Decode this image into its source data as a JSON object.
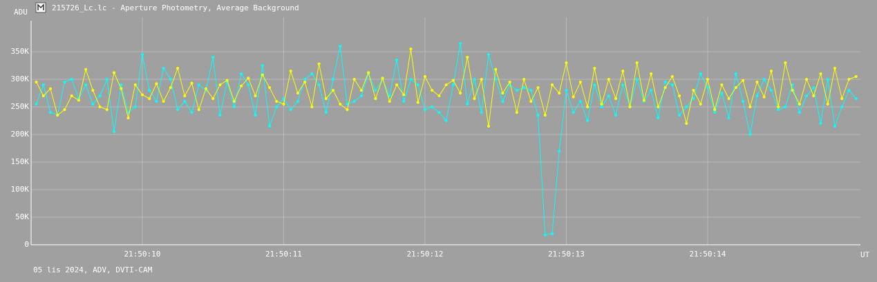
{
  "chart_data": {
    "type": "line",
    "title": "215726_Lc.lc - Aperture Photometry, Average Background",
    "ylabel": "ADU",
    "xlabel": "UT",
    "footer": "05 lis 2024, ADV, DVTI-CAM",
    "grid": true,
    "ylim": [
      0,
      400000
    ],
    "yticks": [
      0,
      {
        "value": 50000,
        "label": "50K"
      },
      {
        "value": 100000,
        "label": "100K"
      },
      {
        "value": 150000,
        "label": "150K"
      },
      {
        "value": 200000,
        "label": "200K"
      },
      {
        "value": 250000,
        "label": "250K"
      },
      {
        "value": 300000,
        "label": "300K"
      },
      {
        "value": 350000,
        "label": "350K"
      }
    ],
    "xlim": [
      9.213,
      15.081
    ],
    "xticks": [
      {
        "value": 10,
        "label": "21:50:10"
      },
      {
        "value": 11,
        "label": "21:50:11"
      },
      {
        "value": 12,
        "label": "21:50:12"
      },
      {
        "value": 13,
        "label": "21:50:13"
      },
      {
        "value": 14,
        "label": "21:50:14"
      }
    ],
    "x": [
      9.25,
      9.3,
      9.35,
      9.4,
      9.45,
      9.5,
      9.55,
      9.6,
      9.65,
      9.7,
      9.75,
      9.8,
      9.85,
      9.9,
      9.95,
      10.0,
      10.05,
      10.1,
      10.15,
      10.2,
      10.25,
      10.3,
      10.35,
      10.4,
      10.45,
      10.5,
      10.55,
      10.6,
      10.65,
      10.7,
      10.75,
      10.8,
      10.85,
      10.9,
      10.95,
      11.0,
      11.05,
      11.1,
      11.15,
      11.2,
      11.25,
      11.3,
      11.35,
      11.4,
      11.45,
      11.5,
      11.55,
      11.6,
      11.65,
      11.7,
      11.75,
      11.8,
      11.85,
      11.9,
      11.95,
      12.0,
      12.05,
      12.1,
      12.15,
      12.2,
      12.25,
      12.3,
      12.35,
      12.4,
      12.45,
      12.5,
      12.55,
      12.6,
      12.65,
      12.7,
      12.75,
      12.8,
      12.85,
      12.9,
      12.95,
      13.0,
      13.05,
      13.1,
      13.15,
      13.2,
      13.25,
      13.3,
      13.35,
      13.4,
      13.45,
      13.5,
      13.55,
      13.6,
      13.65,
      13.7,
      13.75,
      13.8,
      13.85,
      13.9,
      13.95,
      14.0,
      14.05,
      14.1,
      14.15,
      14.2,
      14.25,
      14.3,
      14.35,
      14.4,
      14.45,
      14.5,
      14.55,
      14.6,
      14.65,
      14.7,
      14.75,
      14.8,
      14.85,
      14.9,
      14.95,
      15.0,
      15.05
    ],
    "series": [
      {
        "color": "#00ffff",
        "values": [
          255000,
          290000,
          240000,
          235000,
          295000,
          300000,
          265000,
          290000,
          255000,
          270000,
          300000,
          205000,
          290000,
          240000,
          250000,
          345000,
          280000,
          260000,
          320000,
          300000,
          245000,
          260000,
          240000,
          290000,
          280000,
          340000,
          235000,
          295000,
          250000,
          310000,
          290000,
          235000,
          325000,
          215000,
          250000,
          265000,
          245000,
          260000,
          300000,
          310000,
          290000,
          240000,
          300000,
          360000,
          255000,
          260000,
          270000,
          310000,
          280000,
          300000,
          270000,
          335000,
          260000,
          300000,
          290000,
          245000,
          250000,
          240000,
          225000,
          290000,
          365000,
          255000,
          300000,
          240000,
          345000,
          300000,
          260000,
          290000,
          280000,
          285000,
          280000,
          235000,
          18000,
          20000,
          170000,
          280000,
          240000,
          260000,
          225000,
          290000,
          250000,
          270000,
          235000,
          290000,
          250000,
          300000,
          260000,
          280000,
          230000,
          295000,
          290000,
          235000,
          250000,
          265000,
          310000,
          285000,
          240000,
          275000,
          230000,
          310000,
          260000,
          200000,
          270000,
          300000,
          280000,
          245000,
          250000,
          290000,
          240000,
          270000,
          285000,
          220000,
          300000,
          215000,
          250000,
          280000,
          265000
        ]
      },
      {
        "color": "#ffff00",
        "values": [
          295000,
          270000,
          283000,
          235000,
          245000,
          270000,
          262000,
          318000,
          280000,
          250000,
          245000,
          312000,
          283000,
          230000,
          290000,
          272000,
          265000,
          292000,
          260000,
          285000,
          320000,
          270000,
          293000,
          245000,
          283000,
          265000,
          290000,
          298000,
          260000,
          288000,
          302000,
          270000,
          308000,
          285000,
          260000,
          255000,
          315000,
          275000,
          295000,
          250000,
          328000,
          265000,
          280000,
          255000,
          245000,
          300000,
          280000,
          312000,
          265000,
          302000,
          260000,
          290000,
          272000,
          355000,
          258000,
          305000,
          280000,
          270000,
          290000,
          298000,
          275000,
          340000,
          265000,
          300000,
          215000,
          318000,
          275000,
          295000,
          240000,
          300000,
          260000,
          285000,
          235000,
          290000,
          275000,
          330000,
          268000,
          295000,
          250000,
          320000,
          255000,
          300000,
          265000,
          315000,
          250000,
          330000,
          262000,
          310000,
          250000,
          285000,
          305000,
          270000,
          220000,
          280000,
          255000,
          300000,
          245000,
          290000,
          265000,
          285000,
          298000,
          250000,
          295000,
          268000,
          315000,
          250000,
          330000,
          280000,
          255000,
          300000,
          270000,
          310000,
          255000,
          320000,
          265000,
          300000,
          305000
        ]
      }
    ]
  }
}
